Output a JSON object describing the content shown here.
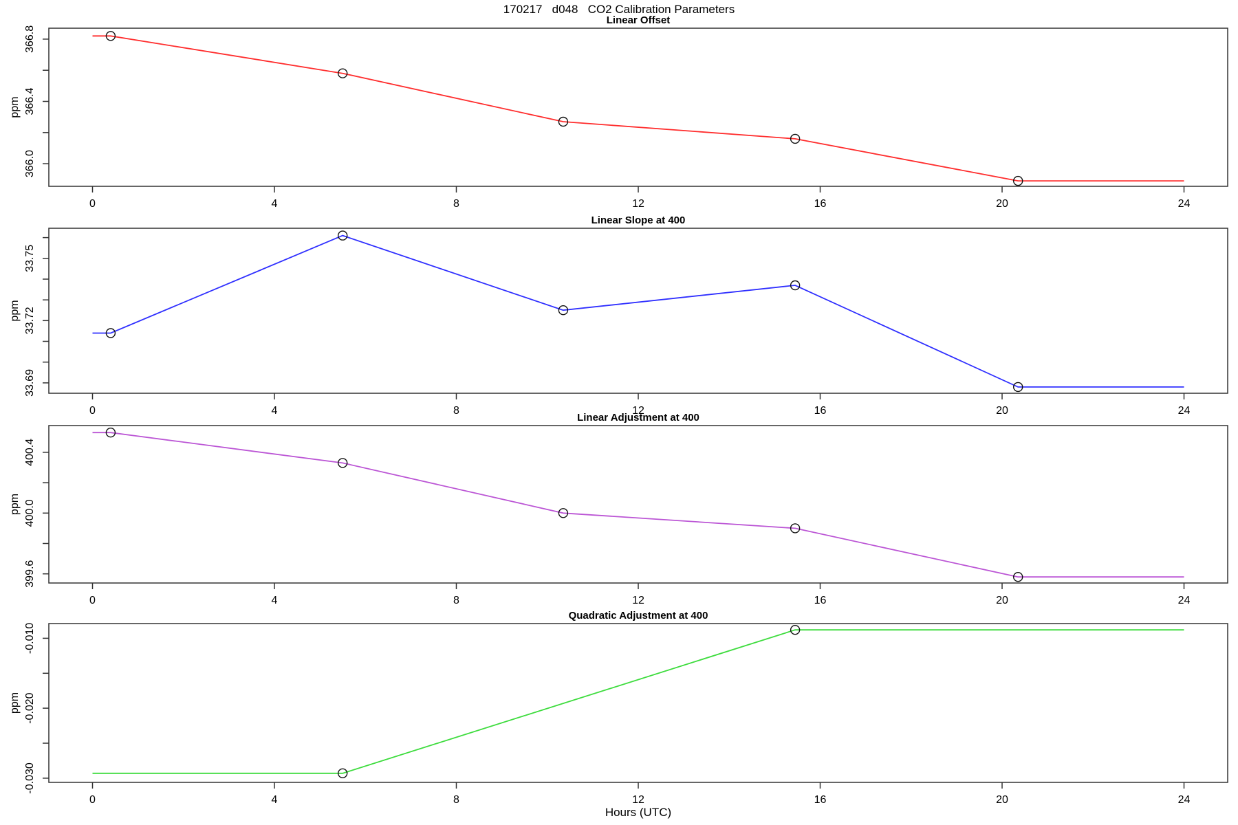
{
  "main_title": "170217   d048   CO2 Calibration Parameters",
  "x_axis": {
    "label": "Hours (UTC)",
    "ticks": [
      "0",
      "4",
      "8",
      "12",
      "16",
      "20",
      "24"
    ],
    "tick_values": [
      0,
      4,
      8,
      12,
      16,
      20,
      24
    ],
    "range": [
      -0.96,
      24.96
    ],
    "data_range": [
      0,
      24
    ]
  },
  "chart_data": [
    {
      "type": "line",
      "title": "Linear Offset",
      "ylabel": "ppm",
      "color": "#ff2d2d",
      "marker": "open-circle",
      "x": [
        0.4,
        5.5,
        10.35,
        15.45,
        20.35
      ],
      "values": [
        366.82,
        366.58,
        366.27,
        366.16,
        365.89
      ],
      "line_extension": "flat-to-x-range-ends",
      "ylim": [
        365.855,
        366.87
      ],
      "yticks": [
        {
          "v": 366.0,
          "label": "366.0"
        },
        {
          "v": 366.2,
          "label": ""
        },
        {
          "v": 366.4,
          "label": "366.4"
        },
        {
          "v": 366.6,
          "label": ""
        },
        {
          "v": 366.8,
          "label": "366.8"
        }
      ]
    },
    {
      "type": "line",
      "title": "Linear Slope at 400",
      "ylabel": "ppm",
      "color": "#2f2fff",
      "marker": "open-circle",
      "x": [
        0.4,
        5.5,
        10.35,
        15.45,
        20.35
      ],
      "values": [
        33.714,
        33.761,
        33.725,
        33.737,
        33.688
      ],
      "line_extension": "flat-to-x-range-ends",
      "ylim": [
        33.685,
        33.7645
      ],
      "yticks": [
        {
          "v": 33.69,
          "label": "33.69"
        },
        {
          "v": 33.7,
          "label": ""
        },
        {
          "v": 33.71,
          "label": ""
        },
        {
          "v": 33.72,
          "label": "33.72"
        },
        {
          "v": 33.73,
          "label": ""
        },
        {
          "v": 33.74,
          "label": ""
        },
        {
          "v": 33.75,
          "label": "33.75"
        },
        {
          "v": 33.76,
          "label": ""
        }
      ]
    },
    {
      "type": "line",
      "title": "Linear Adjustment at 400",
      "ylabel": "ppm",
      "color": "#bb55d5",
      "marker": "open-circle",
      "x": [
        0.4,
        5.5,
        10.35,
        15.45,
        20.35
      ],
      "values": [
        400.53,
        400.33,
        400.0,
        399.9,
        399.58
      ],
      "line_extension": "flat-to-x-range-ends",
      "ylim": [
        399.54,
        400.576
      ],
      "yticks": [
        {
          "v": 399.6,
          "label": "399.6"
        },
        {
          "v": 399.8,
          "label": ""
        },
        {
          "v": 400.0,
          "label": "400.0"
        },
        {
          "v": 400.2,
          "label": ""
        },
        {
          "v": 400.4,
          "label": "400.4"
        }
      ]
    },
    {
      "type": "line",
      "title": "Quadratic Adjustment at 400",
      "ylabel": "ppm",
      "color": "#3ddc3d",
      "marker": "open-circle",
      "x": [
        5.5,
        15.45
      ],
      "values": [
        -0.0293,
        -0.0088
      ],
      "line_extension": "flat-to-x-range-ends",
      "ylim": [
        -0.0306,
        -0.0079
      ],
      "yticks": [
        {
          "v": -0.03,
          "label": "-0.030"
        },
        {
          "v": -0.025,
          "label": ""
        },
        {
          "v": -0.02,
          "label": "-0.020"
        },
        {
          "v": -0.015,
          "label": ""
        },
        {
          "v": -0.01,
          "label": "-0.010"
        }
      ]
    }
  ]
}
